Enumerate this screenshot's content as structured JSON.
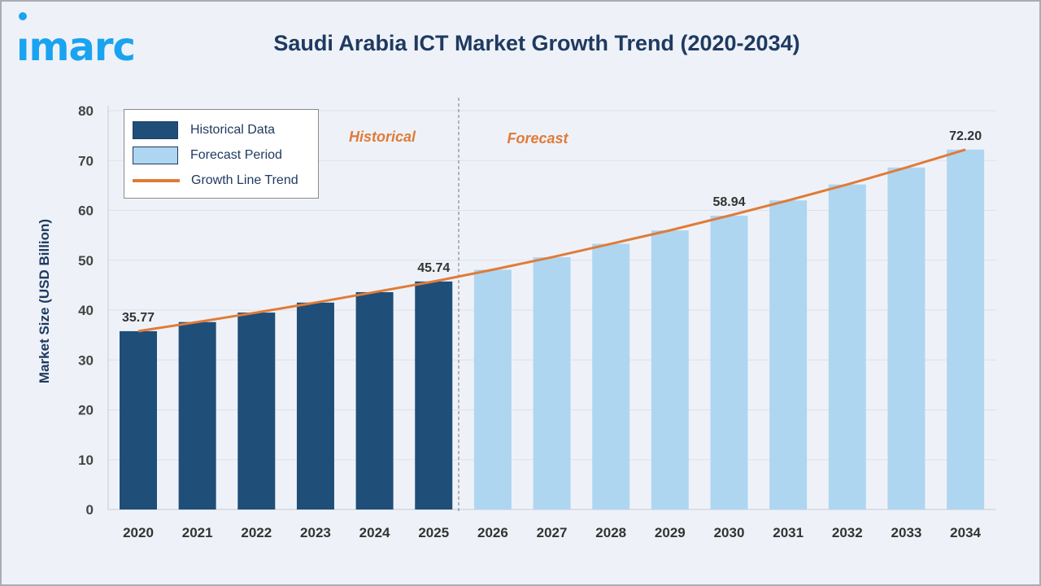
{
  "brand": "imarc",
  "title": "Saudi Arabia ICT Market Growth Trend (2020-2034)",
  "chart_data": {
    "type": "bar",
    "title": "Saudi Arabia ICT Market Growth Trend (2020-2034)",
    "xlabel": "",
    "ylabel": "Market Size (USD Billion)",
    "ylim": [
      0,
      80
    ],
    "yticks": [
      0,
      10,
      20,
      30,
      40,
      50,
      60,
      70,
      80
    ],
    "grid": true,
    "legend_position": "top-left",
    "categories": [
      "2020",
      "2021",
      "2022",
      "2023",
      "2024",
      "2025",
      "2026",
      "2027",
      "2028",
      "2029",
      "2030",
      "2031",
      "2032",
      "2033",
      "2034"
    ],
    "series": [
      {
        "name": "Historical Data",
        "color": "#1f4e79",
        "values": [
          35.77,
          37.6,
          39.5,
          41.5,
          43.6,
          45.74,
          null,
          null,
          null,
          null,
          null,
          null,
          null,
          null,
          null
        ]
      },
      {
        "name": "Forecast Period",
        "color": "#aed6f1",
        "values": [
          null,
          null,
          null,
          null,
          null,
          null,
          48.1,
          50.6,
          53.3,
          56.0,
          58.94,
          62.0,
          65.2,
          68.6,
          72.2
        ]
      },
      {
        "name": "Growth Line Trend",
        "type": "line",
        "color": "#e07b39",
        "values": [
          35.77,
          37.6,
          39.5,
          41.5,
          43.6,
          45.74,
          48.1,
          50.6,
          53.3,
          56.0,
          58.94,
          62.0,
          65.2,
          68.6,
          72.2
        ]
      }
    ],
    "data_labels": [
      {
        "category": "2020",
        "text": "35.77"
      },
      {
        "category": "2025",
        "text": "45.74"
      },
      {
        "category": "2030",
        "text": "58.94"
      },
      {
        "category": "2034",
        "text": "72.20"
      }
    ],
    "annotations": [
      {
        "text": "Historical",
        "color": "#e07b39"
      },
      {
        "text": "Forecast",
        "color": "#e07b39"
      }
    ]
  }
}
